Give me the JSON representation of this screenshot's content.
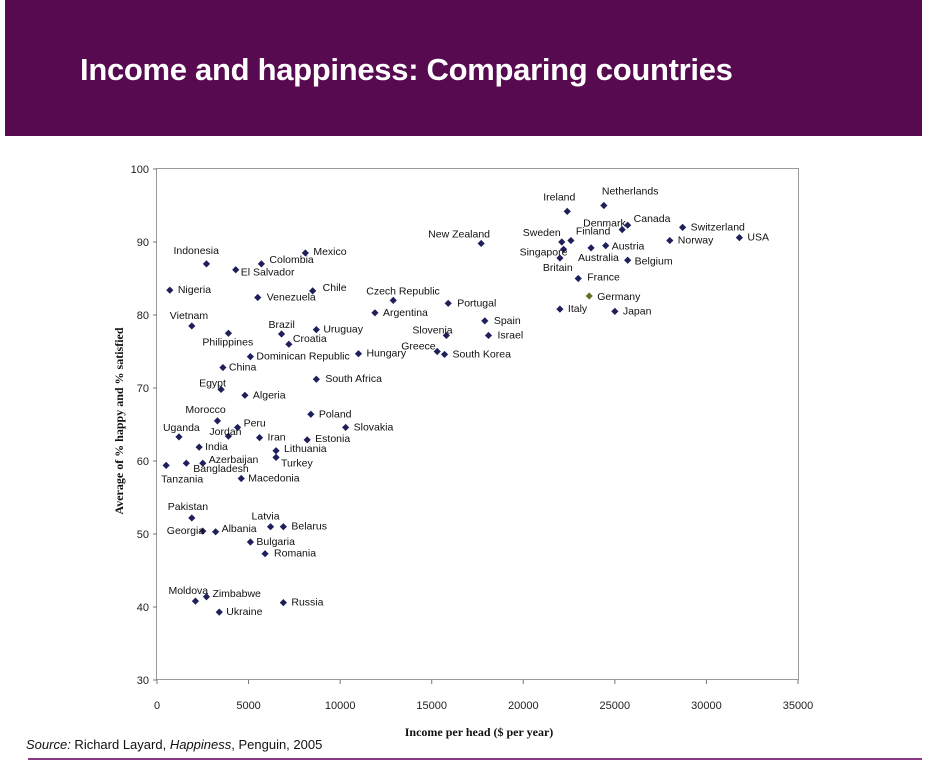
{
  "title": "Income and happiness:  Comparing countries",
  "source": {
    "prefix": "Source:",
    "author": " Richard Layard, ",
    "book": "Happiness",
    "rest": ", Penguin, 2005"
  },
  "colors": {
    "banner": "#570a4f",
    "marker": "#1f1f5c",
    "highlight_marker": "#6b6b2a",
    "rule": "#8a3a84"
  },
  "chart_data": {
    "type": "scatter",
    "xlabel": "Income per head ($ per year)",
    "ylabel": "Average of % happy and % satisfied",
    "xlim": [
      0,
      35000
    ],
    "ylim": [
      30,
      100
    ],
    "x_ticks": [
      0,
      5000,
      10000,
      15000,
      20000,
      25000,
      30000,
      35000
    ],
    "y_ticks": [
      30,
      40,
      50,
      60,
      70,
      80,
      90,
      100
    ],
    "grid": false,
    "points": [
      {
        "name": "Netherlands",
        "x": 24400,
        "y": 95.0
      },
      {
        "name": "Ireland",
        "x": 22400,
        "y": 94.2
      },
      {
        "name": "Denmark",
        "x": 25400,
        "y": 91.7
      },
      {
        "name": "Canada",
        "x": 25700,
        "y": 92.3
      },
      {
        "name": "Switzerland",
        "x": 28700,
        "y": 92.0
      },
      {
        "name": "USA",
        "x": 31800,
        "y": 90.6
      },
      {
        "name": "Norway",
        "x": 28000,
        "y": 90.2
      },
      {
        "name": "Sweden",
        "x": 22100,
        "y": 90.0
      },
      {
        "name": "Finland",
        "x": 22600,
        "y": 90.2
      },
      {
        "name": "Austria",
        "x": 24500,
        "y": 89.5
      },
      {
        "name": "Singapore",
        "x": 22200,
        "y": 89.0
      },
      {
        "name": "Australia",
        "x": 23700,
        "y": 89.2
      },
      {
        "name": "Belgium",
        "x": 25700,
        "y": 87.5
      },
      {
        "name": "Britain",
        "x": 22000,
        "y": 87.8
      },
      {
        "name": "France",
        "x": 23000,
        "y": 85.0
      },
      {
        "name": "Germany",
        "x": 23600,
        "y": 82.6,
        "highlight": true
      },
      {
        "name": "Italy",
        "x": 22000,
        "y": 80.8
      },
      {
        "name": "Japan",
        "x": 25000,
        "y": 80.5
      },
      {
        "name": "New Zealand",
        "x": 17700,
        "y": 89.8
      },
      {
        "name": "Portugal",
        "x": 15900,
        "y": 81.6
      },
      {
        "name": "Czech Republic",
        "x": 12900,
        "y": 82.0
      },
      {
        "name": "Argentina",
        "x": 11900,
        "y": 80.3
      },
      {
        "name": "Spain",
        "x": 17900,
        "y": 79.2
      },
      {
        "name": "Israel",
        "x": 18100,
        "y": 77.2
      },
      {
        "name": "Slovenia",
        "x": 15800,
        "y": 77.2
      },
      {
        "name": "Greece",
        "x": 15300,
        "y": 75.0
      },
      {
        "name": "South Korea",
        "x": 15700,
        "y": 74.6
      },
      {
        "name": "Hungary",
        "x": 11000,
        "y": 74.7
      },
      {
        "name": "Mexico",
        "x": 8100,
        "y": 88.5
      },
      {
        "name": "Colombia",
        "x": 5700,
        "y": 87.0
      },
      {
        "name": "El Salvador",
        "x": 4300,
        "y": 86.2
      },
      {
        "name": "Indonesia",
        "x": 2700,
        "y": 87.0
      },
      {
        "name": "Chile",
        "x": 8500,
        "y": 83.3
      },
      {
        "name": "Venezuela",
        "x": 5500,
        "y": 82.4
      },
      {
        "name": "Nigeria",
        "x": 700,
        "y": 83.4
      },
      {
        "name": "Vietnam",
        "x": 1900,
        "y": 78.5
      },
      {
        "name": "Brazil",
        "x": 6800,
        "y": 77.4
      },
      {
        "name": "Uruguay",
        "x": 8700,
        "y": 78.0
      },
      {
        "name": "Croatia",
        "x": 7200,
        "y": 76.0
      },
      {
        "name": "Philippines",
        "x": 3900,
        "y": 77.5
      },
      {
        "name": "Dominican Republic",
        "x": 5100,
        "y": 74.3
      },
      {
        "name": "China",
        "x": 3600,
        "y": 72.8
      },
      {
        "name": "Egypt",
        "x": 3500,
        "y": 69.8
      },
      {
        "name": "Algeria",
        "x": 4800,
        "y": 69.0
      },
      {
        "name": "South Africa",
        "x": 8700,
        "y": 71.2
      },
      {
        "name": "Poland",
        "x": 8400,
        "y": 66.4
      },
      {
        "name": "Slovakia",
        "x": 10300,
        "y": 64.6
      },
      {
        "name": "Estonia",
        "x": 8200,
        "y": 62.9
      },
      {
        "name": "Morocco",
        "x": 3300,
        "y": 65.5
      },
      {
        "name": "Peru",
        "x": 4400,
        "y": 64.6
      },
      {
        "name": "Uganda",
        "x": 1200,
        "y": 63.3
      },
      {
        "name": "Jordan",
        "x": 3900,
        "y": 63.4
      },
      {
        "name": "Iran",
        "x": 5600,
        "y": 63.2
      },
      {
        "name": "India",
        "x": 2300,
        "y": 61.9
      },
      {
        "name": "Lithuania",
        "x": 6500,
        "y": 61.4
      },
      {
        "name": "Turkey",
        "x": 6500,
        "y": 60.5
      },
      {
        "name": "Azerbaijan",
        "x": 2500,
        "y": 59.7
      },
      {
        "name": "Bangladesh",
        "x": 1600,
        "y": 59.7
      },
      {
        "name": "Tanzania",
        "x": 500,
        "y": 59.4
      },
      {
        "name": "Macedonia",
        "x": 4600,
        "y": 57.6
      },
      {
        "name": "Pakistan",
        "x": 1900,
        "y": 52.2
      },
      {
        "name": "Latvia",
        "x": 6200,
        "y": 51.0
      },
      {
        "name": "Belarus",
        "x": 6900,
        "y": 51.0
      },
      {
        "name": "Albania",
        "x": 3200,
        "y": 50.3
      },
      {
        "name": "Georgia",
        "x": 2500,
        "y": 50.4
      },
      {
        "name": "Bulgaria",
        "x": 5100,
        "y": 48.9
      },
      {
        "name": "Romania",
        "x": 5900,
        "y": 47.3
      },
      {
        "name": "Moldova",
        "x": 2100,
        "y": 40.8
      },
      {
        "name": "Zimbabwe",
        "x": 2700,
        "y": 41.4
      },
      {
        "name": "Ukraine",
        "x": 3400,
        "y": 39.3
      },
      {
        "name": "Russia",
        "x": 6900,
        "y": 40.6
      }
    ]
  }
}
